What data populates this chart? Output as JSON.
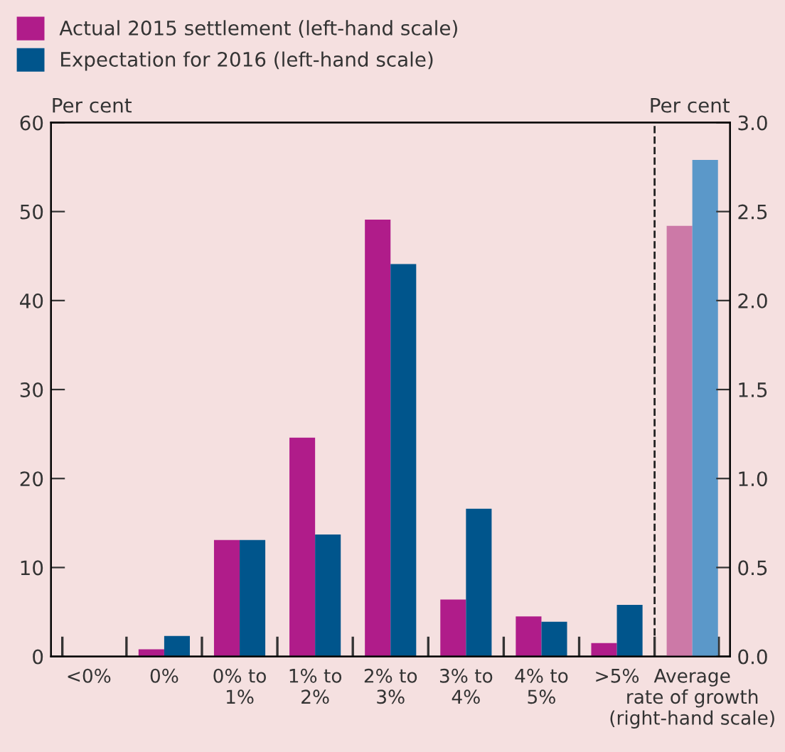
{
  "chart_data": {
    "type": "bar",
    "ylabel": "Per cent",
    "y2label": "Per cent",
    "categories": [
      "<0%",
      "0%",
      "0% to\n1%",
      "1% to\n2%",
      "2% to\n3%",
      "3% to\n4%",
      "4% to\n5%",
      ">5%",
      "Average\nrate of growth\n(right-hand scale)"
    ],
    "series": [
      {
        "name": "Actual 2015 settlement (left-hand scale)",
        "color": "#b01c8a",
        "values": [
          0,
          0.8,
          13.1,
          24.6,
          49.1,
          6.4,
          4.5,
          1.5,
          null
        ]
      },
      {
        "name": "Expectation for 2016 (left-hand scale)",
        "color": "#00558c",
        "values": [
          0,
          2.3,
          13.1,
          13.7,
          44.1,
          16.6,
          3.9,
          5.8,
          null
        ]
      },
      {
        "color": "#cc79a7",
        "axis": "y2",
        "values": [
          null,
          null,
          null,
          null,
          null,
          null,
          null,
          null,
          2.42
        ]
      },
      {
        "color": "#5b98c9",
        "axis": "y2",
        "values": [
          null,
          null,
          null,
          null,
          null,
          null,
          null,
          null,
          2.79
        ]
      }
    ],
    "ylim": [
      0,
      60
    ],
    "yticks": [
      0,
      10,
      20,
      30,
      40,
      50,
      60
    ],
    "y2lim": [
      0,
      3.0
    ],
    "y2ticks": [
      {
        "value": 0,
        "label": "0.0"
      },
      {
        "value": 0.5,
        "label": "0.5"
      },
      {
        "value": 1.0,
        "label": "1.0"
      },
      {
        "value": 1.5,
        "label": "1.5"
      },
      {
        "value": 2.0,
        "label": "2.0"
      },
      {
        "value": 2.5,
        "label": "2.5"
      },
      {
        "value": 3.0,
        "label": "3.0"
      }
    ],
    "legend": "top left",
    "grid": false
  }
}
